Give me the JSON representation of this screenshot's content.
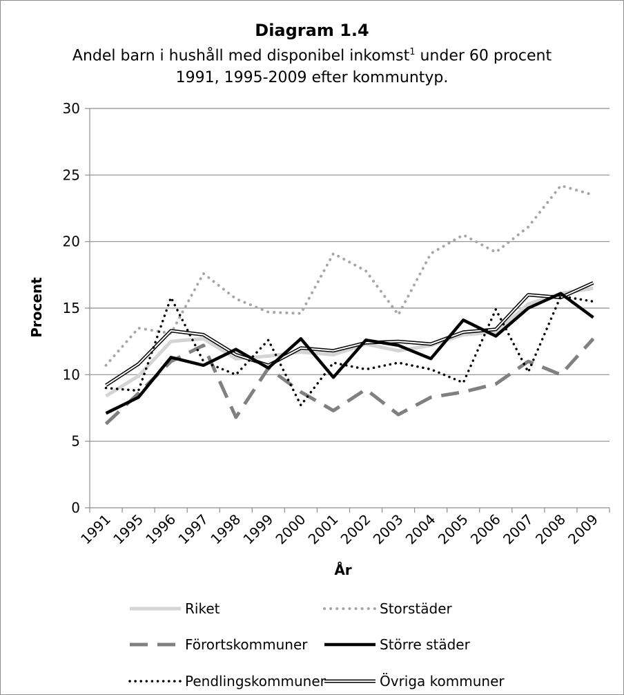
{
  "chart_data": {
    "type": "line",
    "title": "Diagram 1.4",
    "subtitle_line1": "Andel barn i hushåll med disponibel inkomst",
    "subtitle_footnote": "1",
    "subtitle_line1_end": " under 60 procent",
    "subtitle_line2": "1991, 1995-2009 efter kommuntyp.",
    "xlabel": "År",
    "ylabel": "Procent",
    "ylim": [
      0,
      30
    ],
    "yticks": [
      0,
      5,
      10,
      15,
      20,
      25,
      30
    ],
    "grid": true,
    "legend_placement": "bottom",
    "categories": [
      "1991",
      "1995",
      "1996",
      "1997",
      "1998",
      "1999",
      "2000",
      "2001",
      "2002",
      "2003",
      "2004",
      "2005",
      "2006",
      "2007",
      "2008",
      "2009"
    ],
    "series": [
      {
        "name": "Riket",
        "style": "light",
        "color": "#d4d4d4",
        "values": [
          8.4,
          9.9,
          12.5,
          12.7,
          11.2,
          11.4,
          11.7,
          11.5,
          12.3,
          11.8,
          12.2,
          13.0,
          13.2,
          15.3,
          16.1,
          16.5
        ]
      },
      {
        "name": "Storstäder",
        "style": "dotted-grey",
        "color": "#a6a6a6",
        "values": [
          10.7,
          13.5,
          13.1,
          17.6,
          15.7,
          14.7,
          14.6,
          19.1,
          17.8,
          14.5,
          19.1,
          20.5,
          19.2,
          21.1,
          24.2,
          23.5
        ]
      },
      {
        "name": "Förortskommuner",
        "style": "dashed",
        "color": "#808080",
        "values": [
          6.3,
          8.6,
          11.0,
          12.2,
          6.8,
          10.5,
          8.7,
          7.3,
          8.9,
          7.0,
          8.3,
          8.7,
          9.3,
          11.0,
          10.0,
          12.7
        ]
      },
      {
        "name": "Större städer",
        "style": "thick",
        "color": "#000000",
        "values": [
          7.1,
          8.3,
          11.3,
          10.7,
          11.9,
          10.5,
          12.7,
          9.8,
          12.6,
          12.2,
          11.2,
          14.1,
          12.9,
          15.0,
          16.1,
          14.3
        ]
      },
      {
        "name": "Pendlingskommuner",
        "style": "dotted-black",
        "color": "#000000",
        "values": [
          9.0,
          8.8,
          15.8,
          11.0,
          10.0,
          12.6,
          7.7,
          10.9,
          10.4,
          10.9,
          10.4,
          9.4,
          14.9,
          10.2,
          15.9,
          15.5
        ]
      },
      {
        "name": "Övriga kommuner",
        "style": "double",
        "color": "#000000",
        "values": [
          9.2,
          10.8,
          13.3,
          13.0,
          11.5,
          10.7,
          12.0,
          11.8,
          12.4,
          12.5,
          12.3,
          13.2,
          13.4,
          16.0,
          15.8,
          16.9
        ]
      }
    ]
  }
}
